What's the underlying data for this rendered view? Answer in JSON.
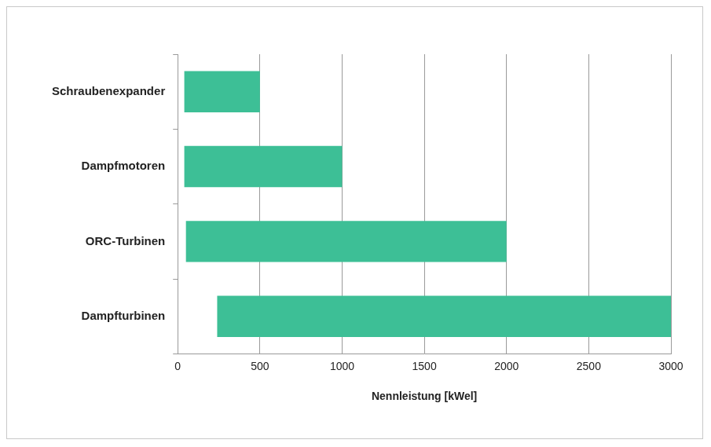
{
  "chart_data": {
    "type": "bar",
    "orientation": "horizontal",
    "categories": [
      "Schraubenexpander",
      "Dampfmotoren",
      "ORC-Turbinen",
      "Dampfturbinen"
    ],
    "values": [
      [
        40,
        500
      ],
      [
        40,
        1000
      ],
      [
        50,
        2000
      ],
      [
        240,
        3000
      ]
    ],
    "color": "#3dbf96",
    "x_label": "Nennleistung [kWel]",
    "xlim": [
      0,
      3000
    ],
    "xticks": [
      0,
      500,
      1000,
      1500,
      2000,
      2500,
      3000
    ],
    "grid": true
  }
}
